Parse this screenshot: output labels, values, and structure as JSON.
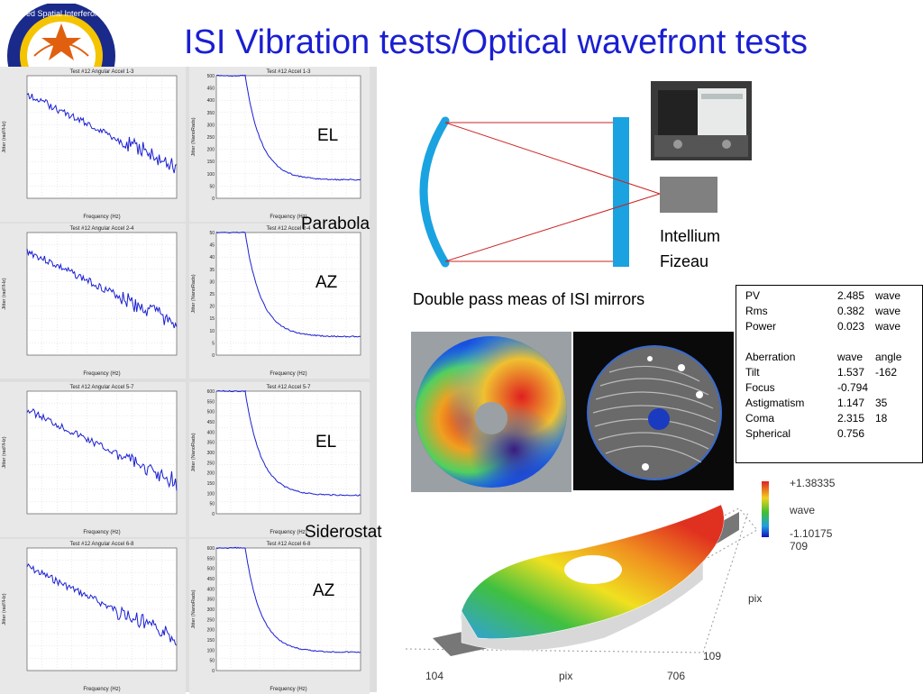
{
  "title": "ISI Vibration tests/Optical wavefront tests",
  "logo": {
    "text": "Infrared Spatial Interferometer"
  },
  "plot_panels": [
    {
      "left_title": "Test #12 Angular Accel 1-3",
      "right_title": "Test #12 Accel 1-3",
      "left_ylabel": "Jitter (rad²/Hz)",
      "right_ylabel": "Jitter (NanoRads)",
      "xlabel": "Frequency (Hz)",
      "right_yticks": [
        "0",
        "50",
        "100",
        "150",
        "200",
        "250",
        "300",
        "350",
        "400",
        "450",
        "500"
      ]
    },
    {
      "left_title": "Test #12 Angular Accel 2-4",
      "right_title": "Test #12 Accel 2-4",
      "left_ylabel": "Jitter (rad²/Hz)",
      "right_ylabel": "Jitter (NanoRads)",
      "xlabel": "Frequency (Hz)",
      "right_yticks": [
        "0",
        "5",
        "10",
        "15",
        "20",
        "25",
        "30",
        "35",
        "40",
        "45",
        "50"
      ]
    },
    {
      "left_title": "Test #12 Angular Accel 5-7",
      "right_title": "Test #12 Accel 5-7",
      "left_ylabel": "Jitter (rad²/Hz)",
      "right_ylabel": "Jitter (NanoRads)",
      "xlabel": "Frequency (Hz)",
      "right_yticks": [
        "0",
        "50",
        "100",
        "150",
        "200",
        "250",
        "300",
        "350",
        "400",
        "450",
        "500",
        "550",
        "600"
      ]
    },
    {
      "left_title": "Test #12 Angular Accel 6-8",
      "right_title": "Test #12 Accel 6-8",
      "left_ylabel": "Jitter (rad²/Hz)",
      "right_ylabel": "Jitter (NanoRads)",
      "xlabel": "Frequency (Hz)",
      "right_yticks": [
        "0",
        "50",
        "100",
        "150",
        "200",
        "250",
        "300",
        "350",
        "400",
        "450",
        "500",
        "550",
        "600"
      ]
    }
  ],
  "labels": {
    "el1": "EL",
    "parabola": "Parabola",
    "az1": "AZ",
    "el2": "EL",
    "siderostat": "Siderostat",
    "az2": "AZ",
    "intellium": "Intellium",
    "fizeau": "Fizeau",
    "double_pass": "Double pass meas of ISI mirrors"
  },
  "results_table": {
    "rows": [
      [
        "PV",
        "2.485",
        "wave"
      ],
      [
        "Rms",
        "0.382",
        "wave"
      ],
      [
        "Power",
        "0.023",
        "wave"
      ],
      [
        "",
        "",
        ""
      ],
      [
        "Aberration",
        "wave",
        "angle"
      ],
      [
        "Tilt",
        "1.537",
        "-162"
      ],
      [
        "Focus",
        "-0.794",
        ""
      ],
      [
        "Astigmatism",
        "1.147",
        "35"
      ],
      [
        "Coma",
        "2.315",
        "18"
      ],
      [
        "Spherical",
        "0.756",
        ""
      ]
    ]
  },
  "surface_plot": {
    "max_label": "+1.38335",
    "unit_label": "wave",
    "min_label": "-1.10175",
    "y_top": "709",
    "y_bottom": "109",
    "x_left": "104",
    "x_right": "706",
    "axis_pix_x": "pix",
    "axis_pix_y": "pix"
  },
  "colors": {
    "title": "#1a1fd1",
    "mirror": "#1aa3e0",
    "beam": "#cc2222",
    "trace": "#1a1fd1"
  }
}
